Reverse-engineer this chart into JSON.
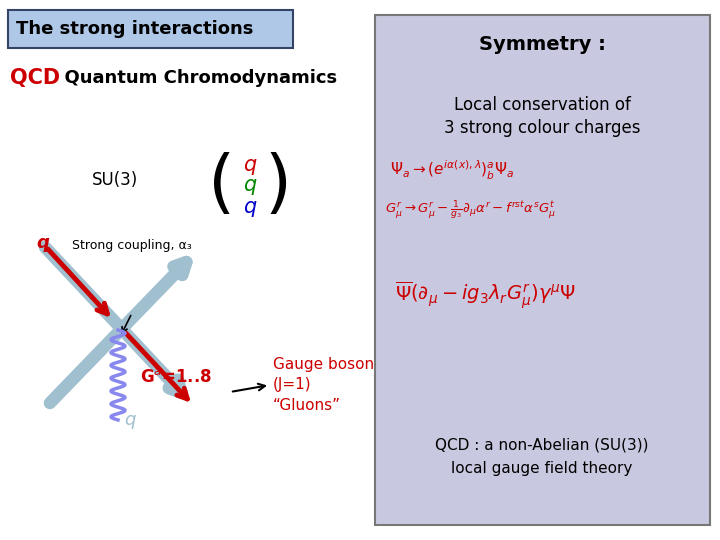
{
  "title": "The strong interactions",
  "bg": "#ffffff",
  "panel_color": "#c8c8e0",
  "title_box_color": "#b0c8e8",
  "red": "#cc0000",
  "blue_gray": "#a0c0d0",
  "green": "#008800",
  "blue_q": "#0000cc",
  "black": "#000000",
  "symmetry_title": "Symmetry :",
  "local_conserve_1": "Local conservation of",
  "local_conserve_2": "3 strong colour charges",
  "qcd_bottom_1": "QCD : a non-Abelian (SU(3))",
  "qcd_bottom_2": "local gauge field theory",
  "gauge_boson_1": "Gauge boson",
  "gauge_boson_2": "(J=1)",
  "gauge_boson_3": "“Gluons”",
  "strong_coupling": "Strong coupling, α₃",
  "su3_text": "SU(3)"
}
